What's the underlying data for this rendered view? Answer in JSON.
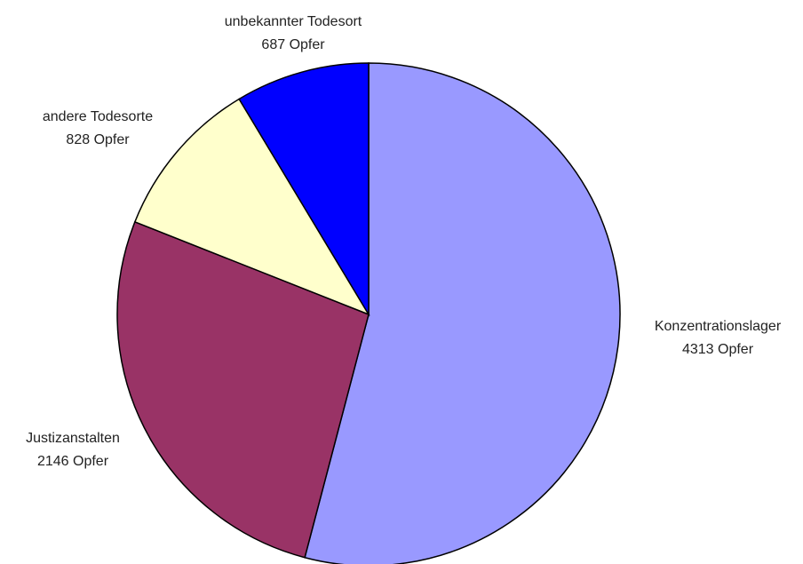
{
  "chart_data": {
    "type": "pie",
    "categories": [
      "Konzentrationslager",
      "Justizanstalten",
      "andere Todesorte",
      "unbekannter Todesort"
    ],
    "values": [
      4313,
      2146,
      828,
      687
    ],
    "value_labels": [
      "4313 Opfer",
      "2146 Opfer",
      "828 Opfer",
      "687 Opfer"
    ],
    "colors": [
      "#9999ff",
      "#993366",
      "#ffffcc",
      "#0000ff"
    ]
  }
}
